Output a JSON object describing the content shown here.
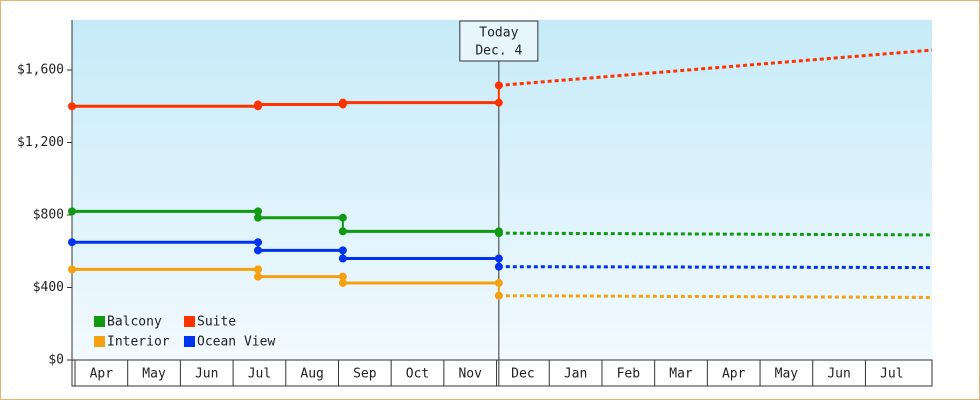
{
  "chart_data": {
    "type": "step-line",
    "categories": [
      "Apr",
      "May",
      "Jun",
      "Jul",
      "Aug",
      "Sep",
      "Oct",
      "Nov",
      "Dec",
      "Jan",
      "Feb",
      "Mar",
      "Apr",
      "May",
      "Jun",
      "Jul"
    ],
    "xlim": [
      0,
      16.32
    ],
    "ylim": [
      0,
      1876
    ],
    "yticks": [
      {
        "value": 0,
        "label": "$0"
      },
      {
        "value": 400,
        "label": "$400"
      },
      {
        "value": 800,
        "label": "$800"
      },
      {
        "value": 1200,
        "label": "$1,200"
      },
      {
        "value": 1600,
        "label": "$1,600"
      }
    ],
    "today": {
      "label": [
        "Today",
        "Dec. 4"
      ],
      "x": 8.1
    },
    "series": [
      {
        "name": "Balcony",
        "color": "#119911",
        "x": [
          0,
          3.53,
          5.14
        ],
        "values": [
          820,
          785,
          710
        ],
        "forecast_x": [
          8.1,
          16.32
        ],
        "forecast_values": [
          700,
          690
        ]
      },
      {
        "name": "Suite",
        "color": "#ff3300",
        "x": [
          0,
          3.53,
          5.14
        ],
        "values": [
          1400,
          1410,
          1420
        ],
        "forecast_x": [
          8.1,
          16.32
        ],
        "forecast_values": [
          1515,
          1710
        ]
      },
      {
        "name": "Interior",
        "color": "#f5a00f",
        "x": [
          0,
          3.53,
          5.14
        ],
        "values": [
          500,
          460,
          425
        ],
        "forecast_x": [
          8.1,
          16.32
        ],
        "forecast_values": [
          355,
          345
        ]
      },
      {
        "name": "Ocean View",
        "color": "#0033ee",
        "x": [
          0,
          3.53,
          5.14
        ],
        "values": [
          650,
          605,
          560
        ],
        "forecast_x": [
          8.1,
          16.32
        ],
        "forecast_values": [
          515,
          510
        ]
      }
    ]
  }
}
